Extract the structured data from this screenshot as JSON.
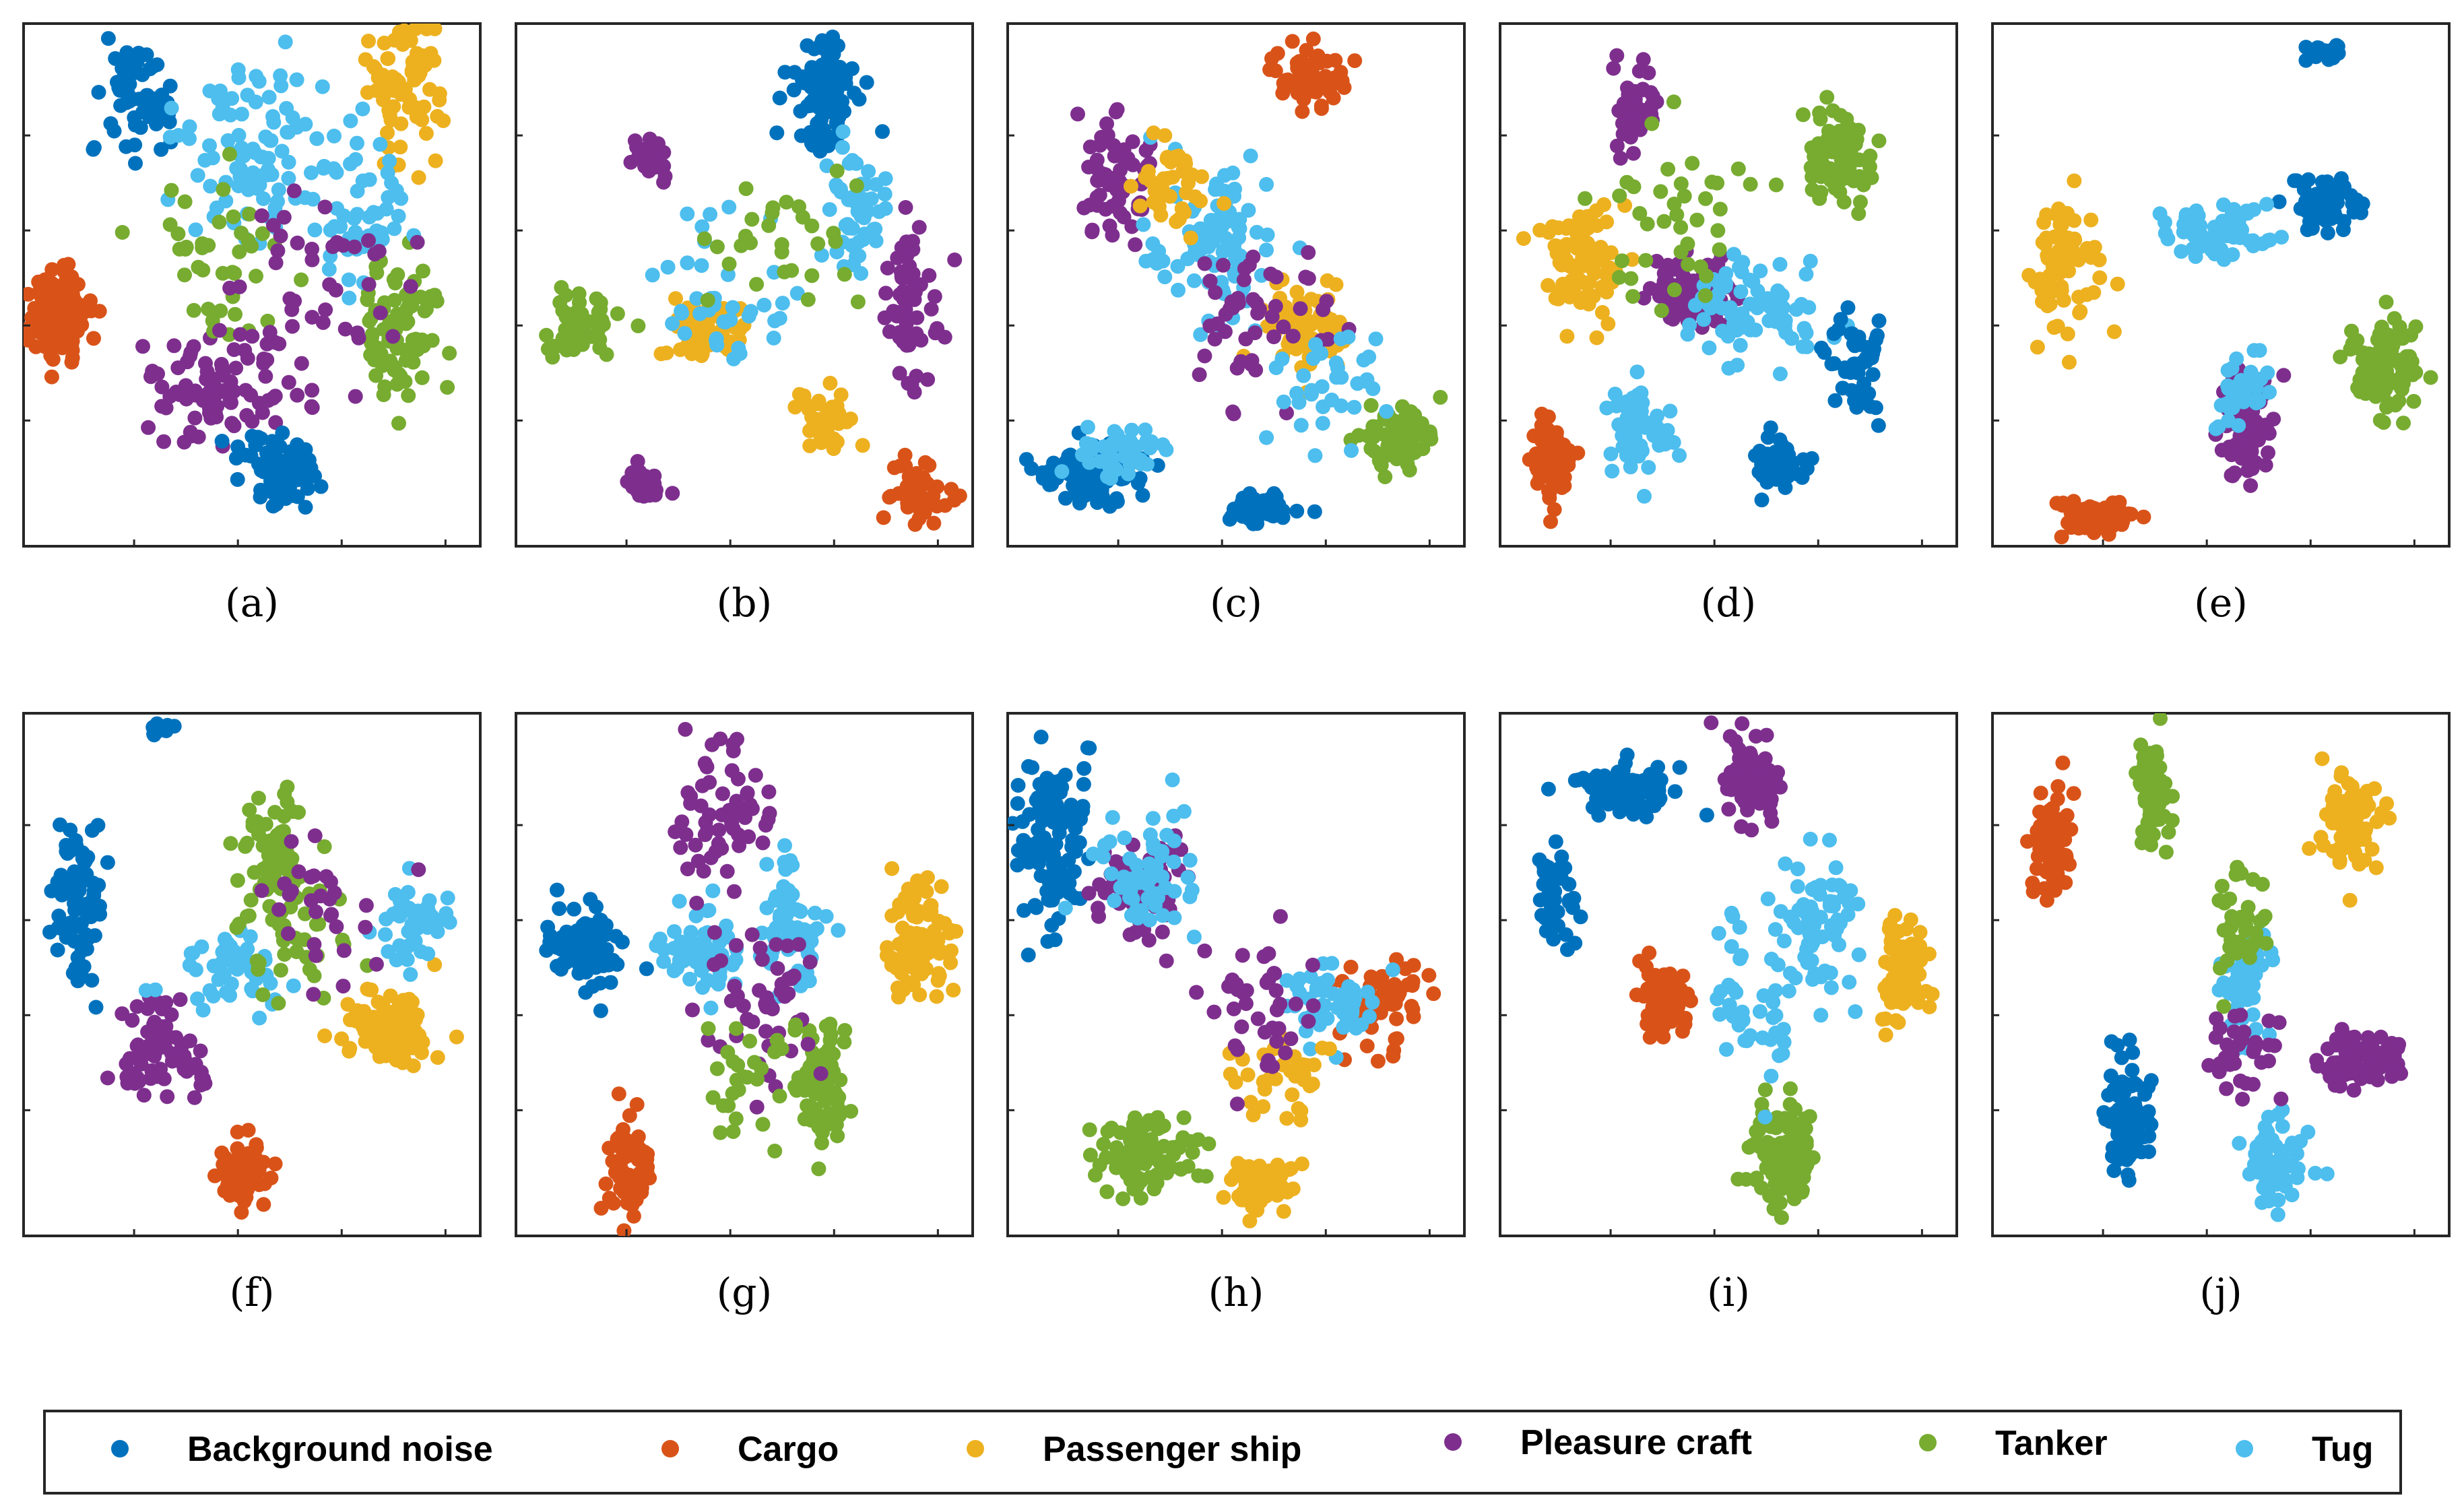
{
  "chart_data": {
    "type": "scatter",
    "title": "",
    "xlabel": "",
    "ylabel": "",
    "grid": false,
    "legend_placement": "bottom",
    "marker_radius": 11,
    "series": [
      {
        "name": "Background noise",
        "color": "#0072BD"
      },
      {
        "name": "Cargo",
        "color": "#D95319"
      },
      {
        "name": "Passenger ship",
        "color": "#EDB120"
      },
      {
        "name": "Pleasure craft",
        "color": "#7E2F8E"
      },
      {
        "name": "Tanker",
        "color": "#77AC30"
      },
      {
        "name": "Tug",
        "color": "#4DBEEE"
      }
    ],
    "panels": [
      {
        "label": "(a)",
        "clusters": [
          [
            1,
            0.08,
            0.56,
            0.06,
            0.07,
            130
          ],
          [
            0,
            0.25,
            0.14,
            0.09,
            0.12,
            60
          ],
          [
            5,
            0.5,
            0.25,
            0.14,
            0.16,
            90
          ],
          [
            2,
            0.83,
            0.12,
            0.08,
            0.14,
            70
          ],
          [
            3,
            0.42,
            0.7,
            0.12,
            0.09,
            80
          ],
          [
            0,
            0.56,
            0.86,
            0.07,
            0.06,
            90
          ],
          [
            4,
            0.82,
            0.58,
            0.08,
            0.12,
            80
          ],
          [
            5,
            0.74,
            0.36,
            0.1,
            0.14,
            55
          ],
          [
            4,
            0.42,
            0.45,
            0.16,
            0.16,
            40
          ],
          [
            3,
            0.62,
            0.52,
            0.18,
            0.18,
            50
          ]
        ]
      },
      {
        "label": "(b)",
        "clusters": [
          [
            0,
            0.68,
            0.14,
            0.07,
            0.09,
            110
          ],
          [
            5,
            0.75,
            0.35,
            0.07,
            0.1,
            50
          ],
          [
            4,
            0.14,
            0.58,
            0.07,
            0.08,
            50
          ],
          [
            2,
            0.42,
            0.58,
            0.08,
            0.06,
            60
          ],
          [
            1,
            0.88,
            0.9,
            0.06,
            0.07,
            50
          ],
          [
            2,
            0.68,
            0.76,
            0.06,
            0.06,
            40
          ],
          [
            3,
            0.28,
            0.88,
            0.04,
            0.03,
            35
          ],
          [
            3,
            0.86,
            0.55,
            0.05,
            0.14,
            60
          ],
          [
            3,
            0.3,
            0.26,
            0.04,
            0.03,
            25
          ],
          [
            5,
            0.45,
            0.5,
            0.16,
            0.14,
            40
          ],
          [
            4,
            0.6,
            0.4,
            0.14,
            0.14,
            30
          ]
        ]
      },
      {
        "label": "(c)",
        "clusters": [
          [
            1,
            0.66,
            0.1,
            0.07,
            0.06,
            60
          ],
          [
            0,
            0.18,
            0.86,
            0.1,
            0.05,
            90
          ],
          [
            5,
            0.25,
            0.82,
            0.07,
            0.05,
            50
          ],
          [
            0,
            0.56,
            0.93,
            0.07,
            0.03,
            45
          ],
          [
            4,
            0.85,
            0.8,
            0.07,
            0.06,
            70
          ],
          [
            2,
            0.65,
            0.58,
            0.09,
            0.07,
            70
          ],
          [
            3,
            0.24,
            0.3,
            0.09,
            0.12,
            60
          ],
          [
            5,
            0.45,
            0.42,
            0.12,
            0.14,
            90
          ],
          [
            3,
            0.55,
            0.55,
            0.14,
            0.14,
            50
          ],
          [
            2,
            0.35,
            0.3,
            0.08,
            0.08,
            40
          ],
          [
            5,
            0.7,
            0.7,
            0.1,
            0.1,
            35
          ]
        ]
      },
      {
        "label": "(d)",
        "clusters": [
          [
            1,
            0.12,
            0.85,
            0.04,
            0.07,
            70
          ],
          [
            2,
            0.18,
            0.45,
            0.08,
            0.12,
            80
          ],
          [
            3,
            0.3,
            0.16,
            0.04,
            0.08,
            45
          ],
          [
            3,
            0.42,
            0.52,
            0.08,
            0.06,
            90
          ],
          [
            4,
            0.75,
            0.25,
            0.06,
            0.09,
            70
          ],
          [
            5,
            0.55,
            0.55,
            0.14,
            0.08,
            80
          ],
          [
            0,
            0.62,
            0.84,
            0.05,
            0.05,
            55
          ],
          [
            0,
            0.78,
            0.65,
            0.05,
            0.09,
            45
          ],
          [
            5,
            0.3,
            0.78,
            0.06,
            0.09,
            50
          ],
          [
            4,
            0.4,
            0.38,
            0.15,
            0.15,
            40
          ]
        ]
      },
      {
        "label": "(e)",
        "clusters": [
          [
            2,
            0.16,
            0.46,
            0.07,
            0.12,
            80
          ],
          [
            1,
            0.22,
            0.94,
            0.07,
            0.03,
            70
          ],
          [
            0,
            0.73,
            0.35,
            0.07,
            0.05,
            80
          ],
          [
            5,
            0.5,
            0.4,
            0.1,
            0.05,
            70
          ],
          [
            4,
            0.86,
            0.67,
            0.07,
            0.08,
            90
          ],
          [
            3,
            0.56,
            0.78,
            0.05,
            0.1,
            80
          ],
          [
            5,
            0.54,
            0.7,
            0.05,
            0.07,
            40
          ],
          [
            0,
            0.73,
            0.05,
            0.04,
            0.02,
            20
          ]
        ]
      },
      {
        "label": "(f)",
        "clusters": [
          [
            0,
            0.12,
            0.35,
            0.05,
            0.15,
            80
          ],
          [
            0,
            0.3,
            0.03,
            0.02,
            0.01,
            12
          ],
          [
            4,
            0.55,
            0.28,
            0.06,
            0.12,
            70
          ],
          [
            2,
            0.8,
            0.6,
            0.08,
            0.06,
            110
          ],
          [
            5,
            0.85,
            0.4,
            0.07,
            0.07,
            50
          ],
          [
            3,
            0.3,
            0.65,
            0.08,
            0.08,
            80
          ],
          [
            1,
            0.48,
            0.88,
            0.06,
            0.06,
            60
          ],
          [
            5,
            0.45,
            0.5,
            0.15,
            0.1,
            50
          ],
          [
            4,
            0.6,
            0.45,
            0.12,
            0.12,
            35
          ],
          [
            3,
            0.65,
            0.35,
            0.12,
            0.12,
            30
          ]
        ]
      },
      {
        "label": "(g)",
        "clusters": [
          [
            0,
            0.15,
            0.45,
            0.07,
            0.07,
            90
          ],
          [
            5,
            0.4,
            0.45,
            0.08,
            0.07,
            60
          ],
          [
            2,
            0.88,
            0.44,
            0.06,
            0.1,
            100
          ],
          [
            1,
            0.25,
            0.87,
            0.04,
            0.09,
            65
          ],
          [
            4,
            0.67,
            0.7,
            0.05,
            0.12,
            80
          ],
          [
            3,
            0.45,
            0.2,
            0.1,
            0.12,
            60
          ],
          [
            5,
            0.6,
            0.4,
            0.07,
            0.12,
            60
          ],
          [
            3,
            0.55,
            0.55,
            0.12,
            0.15,
            50
          ],
          [
            4,
            0.5,
            0.7,
            0.12,
            0.12,
            30
          ]
        ]
      },
      {
        "label": "(h)",
        "clusters": [
          [
            0,
            0.1,
            0.25,
            0.07,
            0.15,
            110
          ],
          [
            3,
            0.28,
            0.35,
            0.1,
            0.1,
            70
          ],
          [
            5,
            0.3,
            0.3,
            0.12,
            0.12,
            60
          ],
          [
            4,
            0.3,
            0.85,
            0.1,
            0.07,
            90
          ],
          [
            2,
            0.55,
            0.9,
            0.07,
            0.05,
            70
          ],
          [
            1,
            0.82,
            0.55,
            0.08,
            0.07,
            60
          ],
          [
            5,
            0.7,
            0.55,
            0.1,
            0.08,
            50
          ],
          [
            2,
            0.6,
            0.7,
            0.1,
            0.08,
            40
          ],
          [
            3,
            0.55,
            0.55,
            0.12,
            0.12,
            40
          ]
        ]
      },
      {
        "label": "(i)",
        "clusters": [
          [
            0,
            0.28,
            0.15,
            0.1,
            0.05,
            80
          ],
          [
            0,
            0.12,
            0.35,
            0.04,
            0.1,
            40
          ],
          [
            3,
            0.55,
            0.12,
            0.06,
            0.09,
            70
          ],
          [
            1,
            0.36,
            0.55,
            0.05,
            0.06,
            70
          ],
          [
            2,
            0.88,
            0.5,
            0.05,
            0.1,
            90
          ],
          [
            5,
            0.7,
            0.4,
            0.07,
            0.14,
            70
          ],
          [
            4,
            0.62,
            0.85,
            0.07,
            0.09,
            100
          ],
          [
            5,
            0.55,
            0.55,
            0.1,
            0.15,
            40
          ]
        ]
      },
      {
        "label": "(j)",
        "clusters": [
          [
            1,
            0.13,
            0.25,
            0.04,
            0.1,
            80
          ],
          [
            4,
            0.35,
            0.15,
            0.03,
            0.1,
            60
          ],
          [
            2,
            0.78,
            0.2,
            0.06,
            0.08,
            80
          ],
          [
            3,
            0.82,
            0.66,
            0.09,
            0.04,
            80
          ],
          [
            0,
            0.3,
            0.78,
            0.05,
            0.1,
            90
          ],
          [
            5,
            0.62,
            0.85,
            0.06,
            0.08,
            70
          ],
          [
            5,
            0.55,
            0.5,
            0.05,
            0.12,
            50
          ],
          [
            4,
            0.55,
            0.4,
            0.06,
            0.08,
            40
          ],
          [
            3,
            0.55,
            0.65,
            0.08,
            0.08,
            35
          ]
        ]
      }
    ]
  }
}
